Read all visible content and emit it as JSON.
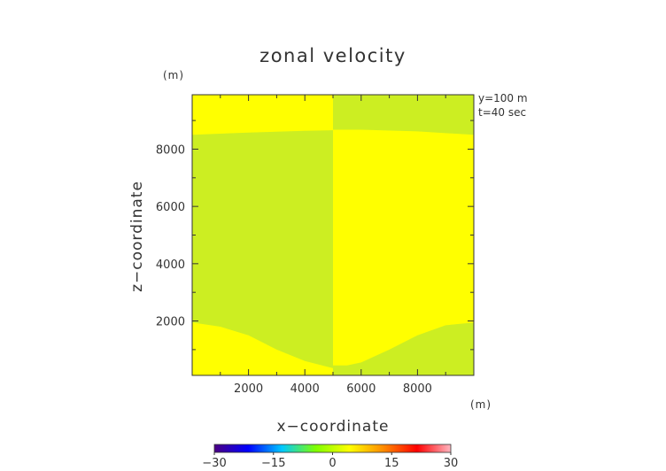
{
  "chart_data": {
    "type": "heatmap",
    "title": "zonal velocity",
    "xlabel": "x−coordinate",
    "ylabel": "z−coordinate",
    "x_unit": "(m)",
    "z_unit": "(m)",
    "annotations": [
      "y=100 m",
      "t=40 sec"
    ],
    "xlim": [
      0,
      10000
    ],
    "ylim": [
      100,
      9900
    ],
    "x_ticks": [
      2000,
      4000,
      6000,
      8000
    ],
    "y_ticks": [
      2000,
      4000,
      6000,
      8000
    ],
    "x_tick_labels": [
      "2000",
      "4000",
      "6000",
      "8000"
    ],
    "y_tick_labels": [
      "2000",
      "4000",
      "6000",
      "8000"
    ],
    "colorbar": {
      "range": [
        -30,
        30
      ],
      "ticks": [
        -30,
        -15,
        0,
        15,
        30
      ],
      "tick_labels": [
        "−30",
        "−15",
        "0",
        "15",
        "30"
      ],
      "colors": [
        "#4b0082",
        "#0000ff",
        "#00c8ff",
        "#7fff00",
        "#ffff00",
        "#ff8c00",
        "#ff0000",
        "#ffb6c1"
      ]
    },
    "regions": [
      {
        "name": "top-left",
        "value": 5,
        "color": "#ffff00",
        "x_range": [
          0,
          5000
        ],
        "z_top": 9900,
        "z_boundary": [
          [
            0,
            8500
          ],
          [
            2000,
            8580
          ],
          [
            4000,
            8640
          ],
          [
            5000,
            8660
          ]
        ]
      },
      {
        "name": "top-right",
        "value": -5,
        "color": "#ccee22",
        "x_range": [
          5000,
          10000
        ],
        "z_top": 9900,
        "z_boundary": [
          [
            5000,
            8680
          ],
          [
            6000,
            8680
          ],
          [
            8000,
            8620
          ],
          [
            10000,
            8500
          ]
        ]
      },
      {
        "name": "left-column",
        "value": -5,
        "color": "#ccee22",
        "x_range": [
          0,
          5000
        ]
      },
      {
        "name": "right-column",
        "value": 5,
        "color": "#ffff00",
        "x_range": [
          5000,
          10000
        ]
      },
      {
        "name": "bottom-left",
        "value": 5,
        "color": "#ffff00",
        "x_range": [
          0,
          5000
        ],
        "z_bottom": 100,
        "z_boundary": [
          [
            0,
            1950
          ],
          [
            1000,
            1800
          ],
          [
            2000,
            1500
          ],
          [
            3000,
            1000
          ],
          [
            4000,
            600
          ],
          [
            4800,
            400
          ],
          [
            5000,
            350
          ]
        ]
      },
      {
        "name": "bottom-right",
        "value": -5,
        "color": "#ccee22",
        "x_range": [
          5000,
          10000
        ],
        "z_bottom": 100,
        "z_boundary": [
          [
            5000,
            450
          ],
          [
            5500,
            450
          ],
          [
            6000,
            550
          ],
          [
            7000,
            1000
          ],
          [
            8000,
            1500
          ],
          [
            9000,
            1850
          ],
          [
            10000,
            1950
          ]
        ]
      }
    ]
  }
}
